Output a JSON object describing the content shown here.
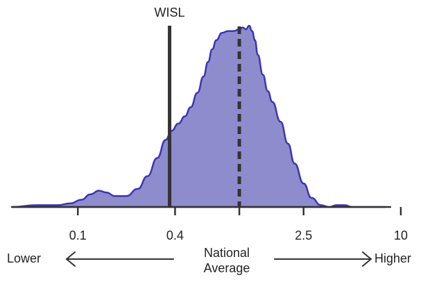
{
  "chart_data": {
    "type": "area",
    "title": "",
    "xlabel": "",
    "ylabel": "",
    "x_scale": "log",
    "xlim": [
      0.039,
      10
    ],
    "ticks": [
      {
        "value": 0.1,
        "label": "0.1"
      },
      {
        "value": 0.4,
        "label": "0.4"
      },
      {
        "value": 1,
        "label": ""
      },
      {
        "value": 2.5,
        "label": "2.5"
      },
      {
        "value": 10,
        "label": "10"
      }
    ],
    "grid": false,
    "legend": "none",
    "series": [
      {
        "name": "",
        "color": "#8e8ccc",
        "stroke": "#3a35b5",
        "x": [
          0.039,
          0.055,
          0.075,
          0.09,
          0.105,
          0.12,
          0.135,
          0.15,
          0.17,
          0.2,
          0.235,
          0.27,
          0.31,
          0.35,
          0.38,
          0.42,
          0.46,
          0.5,
          0.55,
          0.6,
          0.64,
          0.68,
          0.72,
          0.78,
          0.85,
          0.92,
          1.0,
          1.05,
          1.1,
          1.15,
          1.2,
          1.25,
          1.3,
          1.4,
          1.5,
          1.6,
          1.8,
          2.0,
          2.2,
          2.5,
          2.8,
          3.2,
          3.6,
          4.0,
          4.5,
          5.0,
          5.5,
          6.0,
          7.0,
          8.0
        ],
        "y": [
          0.0,
          0.01,
          0.01,
          0.02,
          0.04,
          0.07,
          0.09,
          0.08,
          0.06,
          0.06,
          0.1,
          0.17,
          0.27,
          0.37,
          0.42,
          0.46,
          0.5,
          0.55,
          0.63,
          0.72,
          0.8,
          0.87,
          0.92,
          0.96,
          0.97,
          0.97,
          0.98,
          0.99,
          0.98,
          1.0,
          0.97,
          0.92,
          0.84,
          0.73,
          0.64,
          0.58,
          0.47,
          0.35,
          0.24,
          0.13,
          0.05,
          0.01,
          0.0,
          0.01,
          0.01,
          0.0,
          0.0,
          0.0,
          0.0,
          0.0
        ]
      }
    ],
    "reference_lines": [
      {
        "x": 0.37,
        "style": "solid",
        "label": "WISL"
      },
      {
        "x": 1.0,
        "style": "dashed",
        "label": ""
      }
    ],
    "annotations": {
      "left": "Lower",
      "center_line1": "National",
      "center_line2": "Average",
      "right": "Higher"
    }
  }
}
